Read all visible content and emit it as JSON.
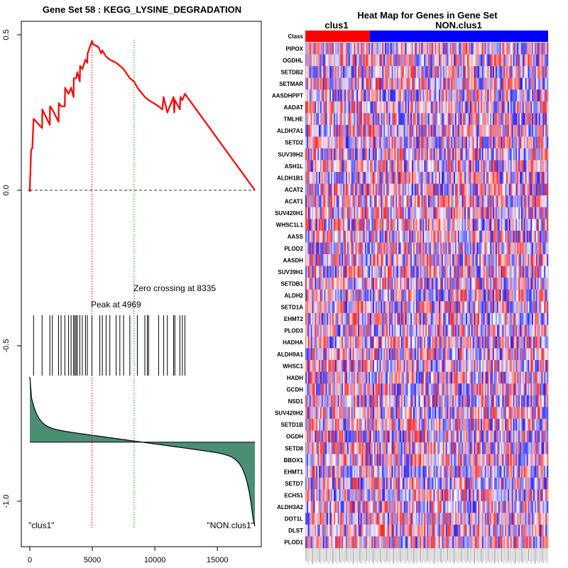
{
  "chart_data": [
    {
      "type": "line",
      "subtype": "gsea-enrichment-plot",
      "title": "Gene Set  58 : KEGG_LYSINE_DEGRADATION",
      "x_ticks": [
        0,
        5000,
        10000,
        15000
      ],
      "y_ticks": [
        0.5,
        0.0,
        -0.5,
        -1.0
      ],
      "y_tick_labels": [
        "0.5",
        "0.0",
        "-0.5",
        "-1.0"
      ],
      "xlim": [
        0,
        18000
      ],
      "ylim": [
        -1.1,
        0.55
      ],
      "running_es": {
        "x": [
          0,
          100,
          200,
          300,
          980,
          1000,
          1600,
          1620,
          1800,
          2300,
          2320,
          2500,
          2800,
          2820,
          3100,
          3300,
          3500,
          3520,
          3700,
          3800,
          4000,
          4020,
          4200,
          4450,
          4600,
          4620,
          4969,
          5050,
          5500,
          5600,
          5700,
          5800,
          6100,
          6400,
          6900,
          7200,
          7500,
          8000,
          8335,
          8600,
          9200,
          9500,
          10300,
          10600,
          10700,
          11000,
          11500,
          11550,
          11600,
          12000,
          12050,
          12200,
          12400,
          18000
        ],
        "y": [
          0.0,
          0.13,
          0.135,
          0.23,
          0.2,
          0.26,
          0.21,
          0.27,
          0.26,
          0.22,
          0.28,
          0.27,
          0.27,
          0.33,
          0.31,
          0.33,
          0.3,
          0.36,
          0.36,
          0.38,
          0.35,
          0.4,
          0.39,
          0.42,
          0.41,
          0.44,
          0.48,
          0.47,
          0.46,
          0.45,
          0.44,
          0.45,
          0.43,
          0.42,
          0.41,
          0.4,
          0.39,
          0.36,
          0.35,
          0.33,
          0.3,
          0.29,
          0.27,
          0.26,
          0.3,
          0.25,
          0.3,
          0.25,
          0.29,
          0.26,
          0.3,
          0.29,
          0.31,
          0.0
        ]
      },
      "hit_positions": [
        300,
        980,
        1600,
        1800,
        2300,
        2500,
        2800,
        3100,
        3300,
        3500,
        3600,
        3700,
        3800,
        4000,
        4200,
        4450,
        4600,
        4969,
        5600,
        5800,
        6100,
        6400,
        6900,
        7200,
        7500,
        8000,
        8600,
        9200,
        9400,
        9500,
        10300,
        10700,
        11000,
        11500,
        11600,
        12000,
        12200,
        12400
      ],
      "peak": {
        "x": 4969,
        "label": "Peak at 4969"
      },
      "zero_crossing": {
        "x": 8335,
        "label": "Zero crossing at 8335"
      },
      "ranked_metric": {
        "baseline": -0.81,
        "start": -0.6,
        "end": -1.08
      },
      "group_labels": {
        "left": "\"clus1\"",
        "right": "\"NON.clus1\""
      },
      "colors": {
        "es_line": "#ff0000",
        "metric_fill": "#4a8f74",
        "peak_line": "#ff0000",
        "zero_line": "#00a000"
      }
    },
    {
      "type": "heatmap",
      "title": "Heat Map for Genes in Gene Set",
      "class_row_label": "Class",
      "classes": [
        {
          "name": "clus1",
          "fraction": 0.265,
          "color": "#ff0000"
        },
        {
          "name": "NON.clus1",
          "fraction": 0.735,
          "color": "#0000ff"
        }
      ],
      "genes": [
        "PIPOX",
        "OGDHL",
        "SETDB2",
        "SETMAR",
        "AASDHPPT",
        "AADAT",
        "TMLHE",
        "ALDH7A1",
        "SETD2",
        "SUV39H2",
        "ASH1L",
        "ALDH1B1",
        "ACAT2",
        "ACAT1",
        "SUV420H1",
        "WHSC1L1",
        "AASS",
        "PLOD2",
        "AASDH",
        "SUV39H1",
        "SETDB1",
        "ALDH2",
        "SETD1A",
        "EHMT2",
        "PLOD3",
        "HADHA",
        "ALDH9A1",
        "WHSC1",
        "HADH",
        "GCDH",
        "NSD1",
        "SUV420H2",
        "SETD1B",
        "OGDH",
        "SETD8",
        "BBOX1",
        "EHMT1",
        "SETD7",
        "ECHS1",
        "ALDH3A2",
        "DOT1L",
        "DLST",
        "PLOD1"
      ],
      "n_samples": 180,
      "color_scale": [
        "#0000ff",
        "#ffffff",
        "#ff0000"
      ]
    }
  ]
}
